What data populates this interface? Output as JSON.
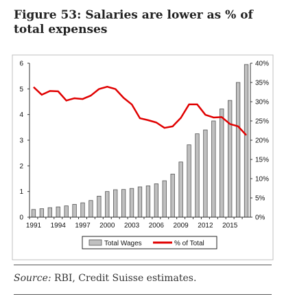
{
  "title": "Figure 53: Salaries are lower as % of total expenses",
  "source": {
    "prefix": "Source:",
    "text": "RBI, Credit Suisse estimates."
  },
  "chart_data": {
    "type": "bar",
    "x_tick_labels": [
      "1991",
      "1994",
      "1997",
      "2000",
      "2003",
      "2006",
      "2009",
      "2012",
      "2015"
    ],
    "years": [
      1991,
      1992,
      1993,
      1994,
      1995,
      1996,
      1997,
      1998,
      1999,
      2000,
      2001,
      2002,
      2003,
      2004,
      2005,
      2006,
      2007,
      2008,
      2009,
      2010,
      2011,
      2012,
      2013,
      2014,
      2015,
      2016,
      2017
    ],
    "series": [
      {
        "name": "Total Wages",
        "type": "bar",
        "axis": "left",
        "color": "#c0c0c0",
        "values": [
          0.3,
          0.33,
          0.37,
          0.4,
          0.44,
          0.5,
          0.56,
          0.65,
          0.82,
          1.0,
          1.07,
          1.08,
          1.12,
          1.18,
          1.22,
          1.3,
          1.42,
          1.68,
          2.15,
          2.82,
          3.25,
          3.4,
          3.75,
          4.22,
          4.55,
          5.25,
          5.95
        ]
      },
      {
        "name": "% of Total",
        "type": "line",
        "axis": "right",
        "color": "#e00000",
        "values": [
          33.8,
          31.8,
          32.8,
          32.7,
          30.3,
          30.9,
          30.7,
          31.6,
          33.3,
          33.9,
          33.3,
          31.0,
          29.3,
          25.7,
          25.2,
          24.6,
          23.2,
          23.6,
          25.8,
          29.3,
          29.3,
          26.6,
          25.9,
          26.0,
          24.2,
          23.6,
          21.3
        ]
      }
    ],
    "ylim_left": [
      0,
      6
    ],
    "yticks_left": [
      "0",
      "1",
      "2",
      "3",
      "4",
      "5",
      "6"
    ],
    "ylim_right": [
      0,
      40
    ],
    "yticks_right": [
      "0%",
      "5%",
      "10%",
      "15%",
      "20%",
      "25%",
      "30%",
      "35%",
      "40%"
    ],
    "grid": false,
    "legend_position": "bottom"
  }
}
